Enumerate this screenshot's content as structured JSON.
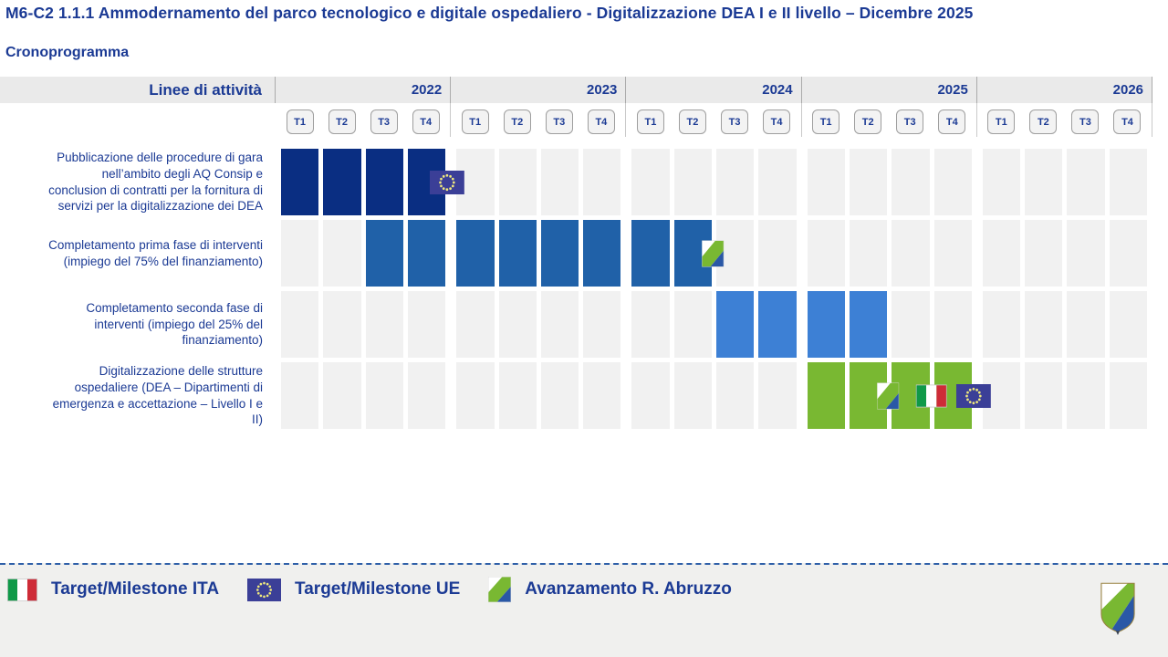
{
  "page": {
    "title": "M6-C2 1.1.1 Ammodernamento del parco tecnologico e digitale ospedaliero - Digitalizzazione DEA I e II livello – Dicembre 2025",
    "subtitle": "Cronoprogramma"
  },
  "table": {
    "header_label": "Linee di attività"
  },
  "legend": {
    "items": [
      {
        "icon": "ita-flag",
        "label": "Target/Milestone ITA"
      },
      {
        "icon": "eu-flag",
        "label": "Target/Milestone UE"
      },
      {
        "icon": "abruzzo",
        "label": "Avanzamento R. Abruzzo"
      }
    ]
  },
  "colors": {
    "navy_text": "#1B3A94",
    "bar_row1": "#0A2E82",
    "bar_row2": "#2061A8",
    "bar_row3": "#3D80D5",
    "bar_row4": "#79B832",
    "empty_cell": "#F1F1F1",
    "header_band": "#EAEAEA",
    "eu_flag_blue": "#3B3F97",
    "ita_green": "#0F9948",
    "ita_red": "#CE2B37",
    "abruzzo_green": "#79B832",
    "abruzzo_blue": "#2A58A6",
    "dashed_line": "#2E5FA8"
  },
  "chart_data": {
    "type": "gantt",
    "title": "Cronoprogramma",
    "years": [
      2022,
      2023,
      2024,
      2025,
      2026
    ],
    "quarters": [
      "T1",
      "T2",
      "T3",
      "T4"
    ],
    "rows": [
      {
        "label": "Pubblicazione delle procedure di gara nell’ambito degli AQ Consip e conclusion di contratti per la fornitura di servizi per la digitalizzazione dei DEA",
        "color": "#0A2E82",
        "bars": [
          {
            "start": "2022-T1",
            "end": "2022-T4"
          }
        ],
        "markers": [
          {
            "type": "eu-flag",
            "at": "2022-T4"
          }
        ]
      },
      {
        "label": "Completamento prima fase di interventi (impiego del 75% del finanziamento)",
        "color": "#2061A8",
        "bars": [
          {
            "start": "2022-T3",
            "end": "2024-T2"
          }
        ],
        "markers": [
          {
            "type": "abruzzo",
            "at": "2024-T2"
          }
        ]
      },
      {
        "label": "Completamento seconda fase di interventi (impiego del 25% del finanziamento)",
        "color": "#3D80D5",
        "bars": [
          {
            "start": "2024-T3",
            "end": "2025-T2"
          }
        ],
        "markers": []
      },
      {
        "label": "Digitalizzazione delle strutture ospedaliere (DEA – Dipartimenti di emergenza e accettazione – Livello I e II)",
        "color": "#79B832",
        "bars": [
          {
            "start": "2025-T1",
            "end": "2025-T4"
          }
        ],
        "markers": [
          {
            "type": "abruzzo",
            "at": "2025-T2"
          },
          {
            "type": "ita-flag",
            "at": "2025-T3"
          },
          {
            "type": "eu-flag",
            "at": "2025-T4"
          }
        ]
      }
    ]
  }
}
